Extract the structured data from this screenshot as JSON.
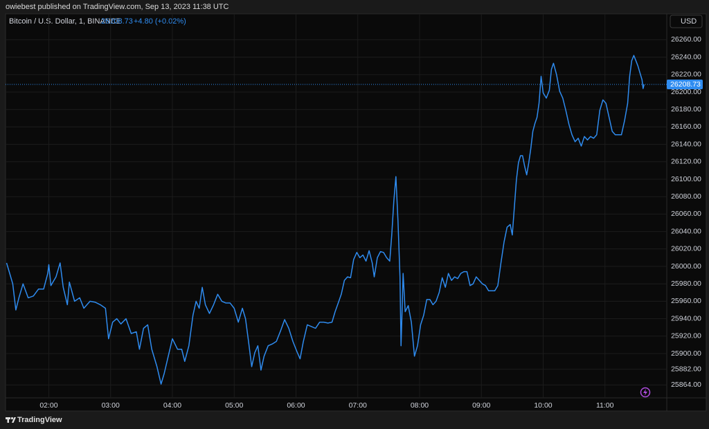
{
  "header": {
    "publisher": "owiebest published on TradingView.com, Sep 13, 2023 11:38 UTC"
  },
  "footer": {
    "brand": "TradingView"
  },
  "chart_data": {
    "type": "line",
    "title": "Bitcoin / U.S. Dollar, 1, BINANCE",
    "last_price": 26208.73,
    "change": "+4.80 (+0.02%)",
    "currency": "USD",
    "grid": true,
    "xlim": [
      78,
      720
    ],
    "xticks": [
      {
        "value": 120,
        "label": "02:00"
      },
      {
        "value": 180,
        "label": "03:00"
      },
      {
        "value": 240,
        "label": "04:00"
      },
      {
        "value": 300,
        "label": "05:00"
      },
      {
        "value": 360,
        "label": "06:00"
      },
      {
        "value": 420,
        "label": "07:00"
      },
      {
        "value": 480,
        "label": "08:00"
      },
      {
        "value": 540,
        "label": "09:00"
      },
      {
        "value": 600,
        "label": "10:00"
      },
      {
        "value": 660,
        "label": "11:00"
      }
    ],
    "ylim": [
      25849.2,
      26289.7
    ],
    "yticks": [
      {
        "value": 25864,
        "label": "25864.00"
      },
      {
        "value": 25882,
        "label": "25882.00"
      },
      {
        "value": 25900,
        "label": "25900.00"
      },
      {
        "value": 25920,
        "label": "25920.00"
      },
      {
        "value": 25940,
        "label": "25940.00"
      },
      {
        "value": 25960,
        "label": "25960.00"
      },
      {
        "value": 25980,
        "label": "25980.00"
      },
      {
        "value": 26000,
        "label": "26000.00"
      },
      {
        "value": 26020,
        "label": "26020.00"
      },
      {
        "value": 26040,
        "label": "26040.00"
      },
      {
        "value": 26060,
        "label": "26060.00"
      },
      {
        "value": 26080,
        "label": "26080.00"
      },
      {
        "value": 26100,
        "label": "26100.00"
      },
      {
        "value": 26120,
        "label": "26120.00"
      },
      {
        "value": 26140,
        "label": "26140.00"
      },
      {
        "value": 26160,
        "label": "26160.00"
      },
      {
        "value": 26180,
        "label": "26180.00"
      },
      {
        "value": 26200,
        "label": "26200.00"
      },
      {
        "value": 26220,
        "label": "26220.00"
      },
      {
        "value": 26240,
        "label": "26240.00"
      },
      {
        "value": 26260,
        "label": "26260.00"
      }
    ],
    "x": [
      79,
      82,
      85,
      88,
      91,
      95,
      100,
      105,
      110,
      115,
      119,
      120,
      122,
      127,
      131,
      134,
      138,
      140,
      145,
      150,
      154,
      160,
      165,
      170,
      175,
      178,
      182,
      186,
      190,
      195,
      200,
      205,
      208,
      212,
      216,
      220,
      225,
      229,
      232,
      236,
      240,
      245,
      249,
      252,
      256,
      260,
      263,
      266,
      269,
      272,
      276,
      280,
      284,
      288,
      292,
      296,
      300,
      304,
      308,
      311,
      314,
      317,
      320,
      323,
      326,
      329,
      333,
      337,
      341,
      345,
      349,
      353,
      357,
      361,
      364,
      367,
      371,
      375,
      379,
      383,
      387,
      391,
      395,
      398,
      401,
      404,
      407,
      410,
      413,
      416,
      419,
      422,
      425,
      428,
      431,
      434,
      436,
      439,
      442,
      445,
      448,
      451,
      453,
      455,
      457,
      459,
      461,
      462,
      463,
      464,
      466,
      469,
      472,
      475,
      478,
      481,
      484,
      487,
      490,
      493,
      496,
      499,
      502,
      505,
      508,
      511,
      514,
      517,
      520,
      523,
      526,
      529,
      532,
      535,
      538,
      541,
      544,
      547,
      550,
      553,
      556,
      559,
      562,
      565,
      568,
      570,
      572,
      574,
      576,
      578,
      580,
      582,
      584,
      586,
      588,
      590,
      592,
      594,
      596,
      598,
      600,
      603,
      606,
      608,
      610,
      613,
      616,
      619,
      622,
      625,
      628,
      631,
      634,
      637,
      640,
      643,
      646,
      649,
      652,
      655,
      658,
      661,
      664,
      667,
      670,
      673,
      676,
      679,
      682,
      684,
      686,
      688,
      690,
      692,
      694,
      696,
      697,
      698
    ],
    "series": [
      {
        "name": "Bitcoin / U.S. Dollar, 1, BINANCE",
        "color": "#2f8cf0",
        "values": [
          26004,
          25992,
          25980,
          25950,
          25964,
          25980,
          25964,
          25966,
          25974,
          25974,
          25992,
          26002,
          25978,
          25988,
          26004,
          25976,
          25956,
          25982,
          25960,
          25964,
          25952,
          25960,
          25959,
          25956,
          25952,
          25917,
          25936,
          25940,
          25934,
          25940,
          25923,
          25925,
          25905,
          25929,
          25933,
          25905,
          25885,
          25865,
          25877,
          25897,
          25917,
          25905,
          25905,
          25891,
          25909,
          25944,
          25960,
          25952,
          25976,
          25956,
          25946,
          25956,
          25968,
          25960,
          25958,
          25958,
          25952,
          25936,
          25952,
          25940,
          25913,
          25885,
          25901,
          25909,
          25881,
          25897,
          25909,
          25911,
          25914,
          25926,
          25939,
          25929,
          25914,
          25902,
          25894,
          25913,
          25933,
          25931,
          25929,
          25936,
          25936,
          25935,
          25936,
          25948,
          25958,
          25968,
          25984,
          25988,
          25987,
          26008,
          26016,
          26010,
          26013,
          26006,
          26018,
          26004,
          25988,
          26010,
          26017,
          26016,
          26010,
          26006,
          26036,
          26075,
          26103,
          26052,
          25988,
          25909,
          25948,
          25992,
          25948,
          25955,
          25936,
          25897,
          25909,
          25933,
          25944,
          25962,
          25962,
          25956,
          25960,
          25970,
          25987,
          25976,
          25992,
          25984,
          25988,
          25986,
          25992,
          25994,
          25994,
          25978,
          25980,
          25988,
          25984,
          25980,
          25978,
          25972,
          25972,
          25972,
          25978,
          26004,
          26028,
          26045,
          26048,
          26036,
          26067,
          26099,
          26119,
          26127,
          26127,
          26115,
          26105,
          26119,
          26135,
          26155,
          26164,
          26171,
          26187,
          26218,
          26199,
          26193,
          26202,
          26226,
          26233,
          26220,
          26201,
          26193,
          26179,
          26163,
          26151,
          26143,
          26147,
          26138,
          26149,
          26145,
          26149,
          26147,
          26151,
          26179,
          26191,
          26187,
          26171,
          26155,
          26151,
          26151,
          26151,
          26167,
          26187,
          26218,
          26236,
          26242,
          26236,
          26230,
          26222,
          26214,
          26204,
          26208.73
        ]
      }
    ]
  }
}
